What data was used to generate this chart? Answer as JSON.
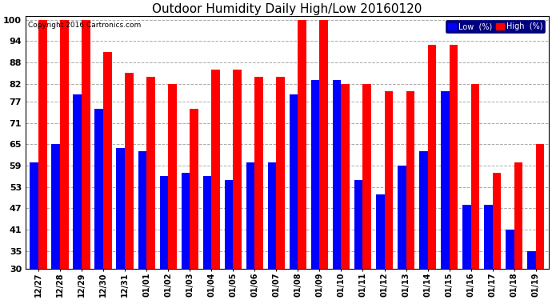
{
  "title": "Outdoor Humidity Daily High/Low 20160120",
  "copyright": "Copyright 2016 Cartronics.com",
  "bar_width": 0.4,
  "low_color": "#0000ff",
  "high_color": "#ff0000",
  "bg_color": "#ffffff",
  "grid_color": "#aaaaaa",
  "yticks": [
    30,
    35,
    41,
    47,
    53,
    59,
    65,
    71,
    77,
    82,
    88,
    94,
    100
  ],
  "ymin": 30,
  "ymax": 101,
  "categories": [
    "12/27",
    "12/28",
    "12/29",
    "12/30",
    "12/31",
    "01/01",
    "01/02",
    "01/03",
    "01/04",
    "01/05",
    "01/06",
    "01/07",
    "01/08",
    "01/09",
    "01/10",
    "01/11",
    "01/12",
    "01/13",
    "01/14",
    "01/15",
    "01/16",
    "01/17",
    "01/18",
    "01/19"
  ],
  "low_vals": [
    60,
    65,
    79,
    75,
    64,
    63,
    56,
    57,
    56,
    55,
    60,
    60,
    79,
    83,
    83,
    55,
    51,
    59,
    63,
    80,
    48,
    48,
    41,
    35
  ],
  "high_vals": [
    100,
    100,
    100,
    91,
    85,
    84,
    82,
    75,
    86,
    86,
    84,
    84,
    100,
    100,
    82,
    82,
    80,
    80,
    93,
    93,
    82,
    57,
    60,
    65
  ]
}
